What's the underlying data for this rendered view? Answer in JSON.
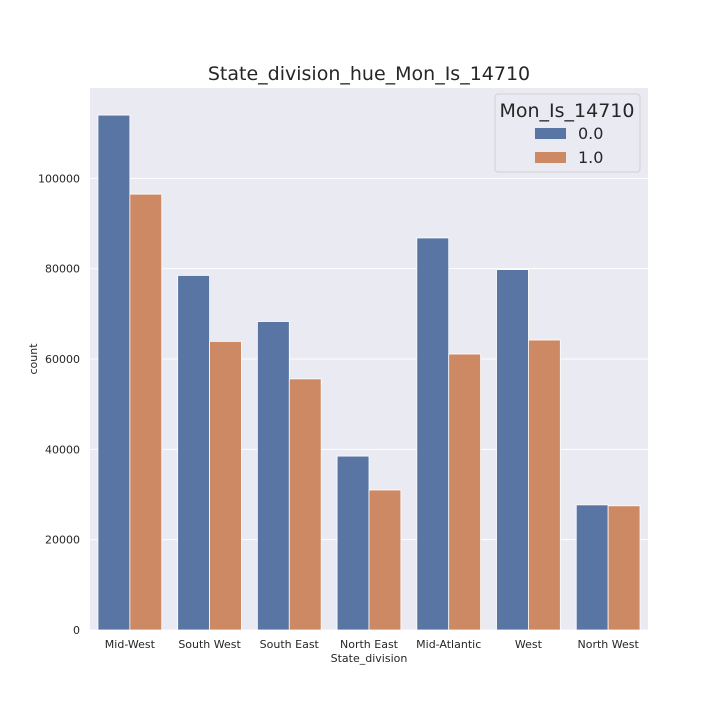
{
  "chart_data": {
    "type": "bar",
    "title": "State_division_hue_Mon_Is_14710",
    "xlabel": "State_division",
    "ylabel": "count",
    "categories": [
      "Mid-West",
      "South West",
      "South East",
      "North East",
      "Mid-Atlantic",
      "West",
      "North West"
    ],
    "series": [
      {
        "name": "0.0",
        "color": "#5875a4",
        "values": [
          114000,
          78500,
          68300,
          38500,
          86800,
          79800,
          27700
        ]
      },
      {
        "name": "1.0",
        "color": "#cc8963",
        "values": [
          96500,
          63900,
          55600,
          31000,
          61100,
          64200,
          27500
        ]
      }
    ],
    "ylim": [
      0,
      120000
    ],
    "yticks": [
      0,
      20000,
      40000,
      60000,
      80000,
      100000
    ],
    "legend": {
      "title": "Mon_Is_14710",
      "placement": "top-right"
    },
    "grid": true,
    "background": "#eaeaf2"
  }
}
